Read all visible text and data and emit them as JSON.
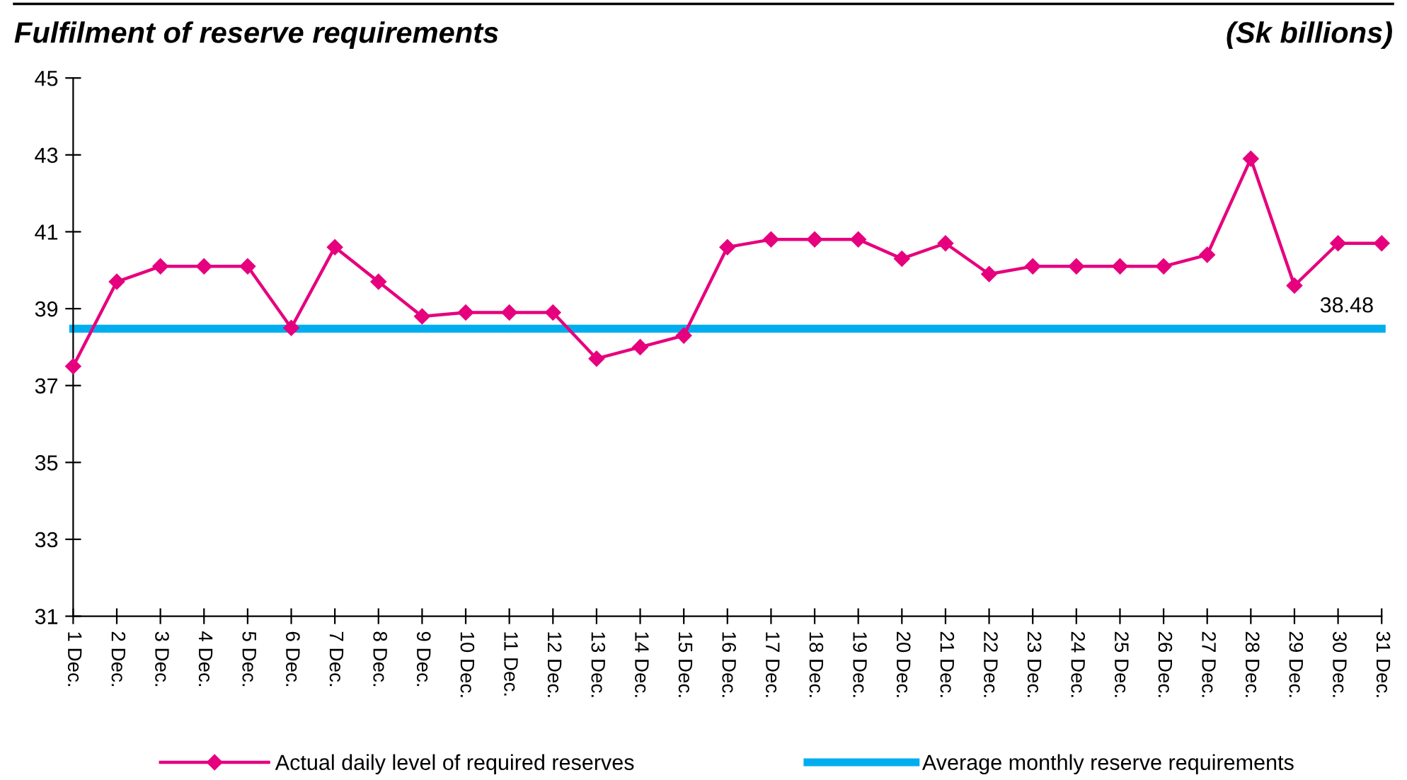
{
  "chart_data": {
    "type": "line",
    "title": "Fulfilment of reserve requirements",
    "annotations": [
      "(Sk billions)"
    ],
    "categories": [
      "1 Dec.",
      "2 Dec.",
      "3 Dec.",
      "4 Dec.",
      "5 Dec.",
      "6 Dec.",
      "7 Dec.",
      "8 Dec.",
      "9 Dec.",
      "10 Dec.",
      "11 Dec.",
      "12 Dec.",
      "13 Dec.",
      "14 Dec.",
      "15 Dec.",
      "16 Dec.",
      "17 Dec.",
      "18 Dec.",
      "19 Dec.",
      "20 Dec.",
      "21 Dec.",
      "22 Dec.",
      "23 Dec.",
      "24 Dec.",
      "25 Dec.",
      "26 Dec.",
      "27 Dec.",
      "28 Dec.",
      "29 Dec.",
      "30 Dec.",
      "31 Dec."
    ],
    "series": [
      {
        "name": "Actual daily level of required reserves",
        "color": "#e6007e",
        "marker": "diamond",
        "values": [
          37.5,
          39.7,
          40.1,
          40.1,
          40.1,
          38.5,
          40.6,
          39.7,
          38.8,
          38.9,
          38.9,
          38.9,
          37.7,
          38.0,
          38.3,
          40.6,
          40.8,
          40.8,
          40.8,
          40.3,
          40.7,
          39.9,
          40.1,
          40.1,
          40.1,
          40.1,
          40.4,
          42.9,
          39.6,
          40.7,
          40.7
        ]
      },
      {
        "name": "Average monthly reserve requirements",
        "color": "#00aeef",
        "marker": "none",
        "values": [
          38.48,
          38.48,
          38.48,
          38.48,
          38.48,
          38.48,
          38.48,
          38.48,
          38.48,
          38.48,
          38.48,
          38.48,
          38.48,
          38.48,
          38.48,
          38.48,
          38.48,
          38.48,
          38.48,
          38.48,
          38.48,
          38.48,
          38.48,
          38.48,
          38.48,
          38.48,
          38.48,
          38.48,
          38.48,
          38.48,
          38.48
        ],
        "value_labels": [
          null,
          null,
          null,
          null,
          null,
          null,
          null,
          null,
          null,
          null,
          null,
          null,
          null,
          null,
          null,
          null,
          null,
          null,
          null,
          null,
          null,
          null,
          null,
          null,
          null,
          null,
          null,
          null,
          null,
          null,
          "38.48"
        ]
      }
    ],
    "ylim": [
      31,
      45
    ],
    "yticks": [
      31,
      33,
      35,
      37,
      39,
      41,
      43,
      45
    ],
    "grid": false,
    "legend": "bottom",
    "line_style": "solid"
  }
}
